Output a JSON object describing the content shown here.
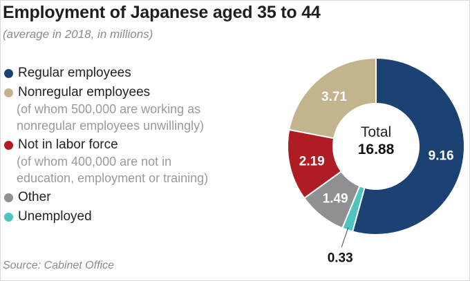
{
  "header": {
    "title": "Employment of Japanese aged 35 to 44",
    "subtitle": "(average in 2018, in millions)"
  },
  "legend": [
    {
      "label": "Regular employees",
      "note": "",
      "color": "#1c4273"
    },
    {
      "label": "Nonregular employees",
      "note": "(of whom 500,000 are working as\nnonregular employees unwillingly)",
      "color": "#c2b48d"
    },
    {
      "label": "Not in labor force",
      "note": "(of whom 400,000 are not in\neducation, employment or training)",
      "color": "#b01c24"
    },
    {
      "label": "Other",
      "note": "",
      "color": "#8e9094"
    },
    {
      "label": "Unemployed",
      "note": "",
      "color": "#4fc3c0"
    }
  ],
  "source": "Source: Cabinet Office",
  "chart_data": {
    "type": "pie",
    "donut": true,
    "title": "Employment of Japanese aged 35 to 44",
    "subtitle": "(average in 2018, in millions)",
    "center_label": "Total",
    "center_value": "16.88",
    "total": 16.88,
    "slices": [
      {
        "label": "Regular employees",
        "value": 9.16,
        "display": "9.16",
        "color": "#1c4273"
      },
      {
        "label": "Unemployed",
        "value": 0.33,
        "display": "0.33",
        "color": "#4fc3c0"
      },
      {
        "label": "Other",
        "value": 1.49,
        "display": "1.49",
        "color": "#8e9094"
      },
      {
        "label": "Not in labor force",
        "value": 2.19,
        "display": "2.19",
        "color": "#b01c24"
      },
      {
        "label": "Nonregular employees",
        "value": 3.71,
        "display": "3.71",
        "color": "#c2b48d"
      }
    ],
    "start": "12 o'clock",
    "direction": "clockwise",
    "legend_position": "left"
  }
}
